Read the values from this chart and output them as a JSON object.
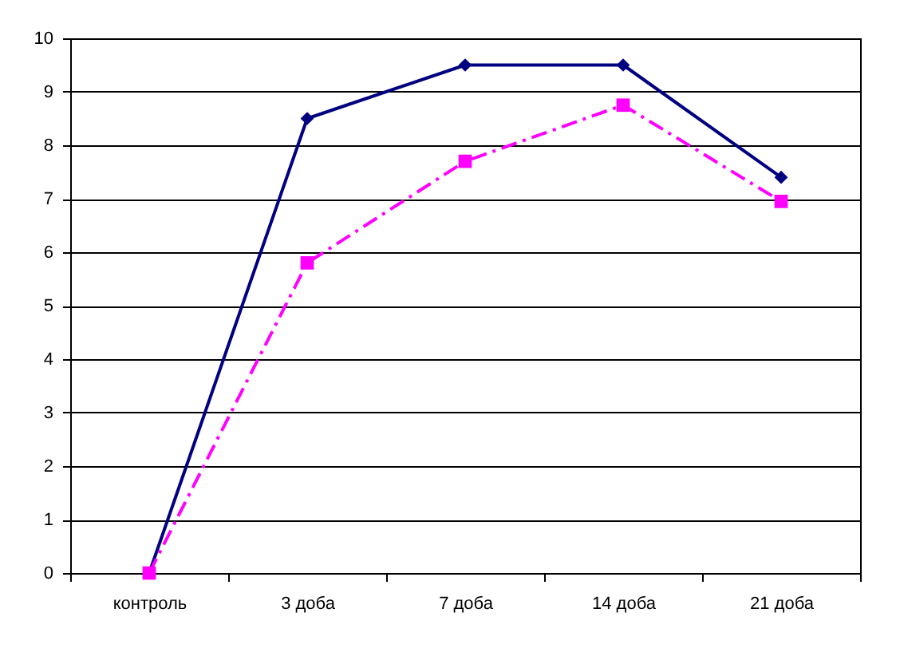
{
  "chart_data": {
    "type": "line",
    "categories": [
      "контроль",
      "3 доба",
      "7 доба",
      "14 доба",
      "21 доба"
    ],
    "series": [
      {
        "color": "#000080",
        "values": [
          0,
          8.5,
          9.5,
          9.5,
          7.4
        ],
        "marker": "diamond",
        "line_style": "solid"
      },
      {
        "color": "#ff00ff",
        "values": [
          0,
          5.8,
          7.7,
          8.75,
          6.95
        ],
        "marker": "square",
        "line_style": "dashed"
      }
    ],
    "ylim": [
      0,
      10
    ],
    "yticks": [
      0,
      1,
      2,
      3,
      4,
      5,
      6,
      7,
      8,
      9,
      10
    ],
    "grid": "y"
  }
}
